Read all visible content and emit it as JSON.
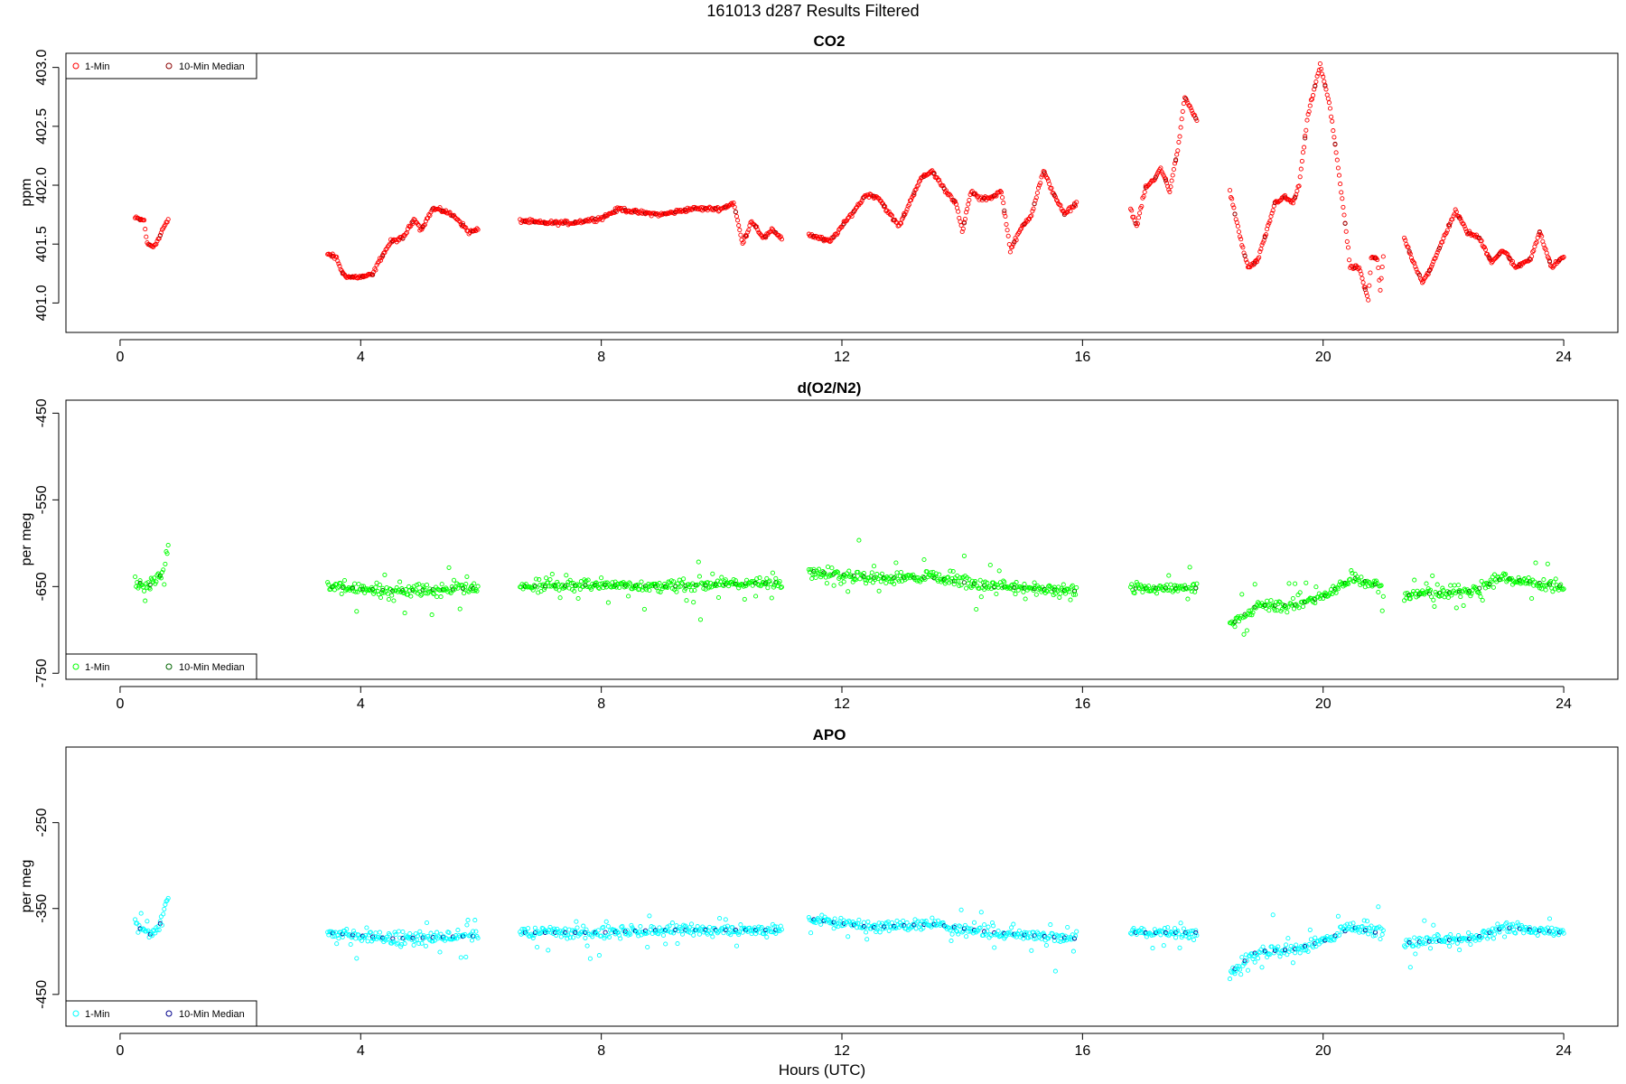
{
  "figure_title": "161013    d287    Results Filtered",
  "xlabel": "Hours (UTC)",
  "chart_data": [
    {
      "type": "scatter",
      "title": "CO2",
      "ylabel": "ppm",
      "xlim": [
        -0.9,
        24.9
      ],
      "ylim": [
        400.75,
        403.12
      ],
      "xticks": [
        0,
        4,
        8,
        12,
        16,
        20,
        24
      ],
      "yticks": [
        401.0,
        401.5,
        402.0,
        402.5,
        403.0
      ],
      "ytick_labels": [
        "401.0",
        "401.5",
        "402.0",
        "402.5",
        "403.0"
      ],
      "legend_position": "top-left",
      "series": [
        {
          "name": "1-Min",
          "color": "#ff0000",
          "segments": [
            {
              "x0": 0.25,
              "x1": 0.8,
              "pts": [
                [
                  0.25,
                  401.72
                ],
                [
                  0.4,
                  401.7
                ],
                [
                  0.45,
                  401.5
                ],
                [
                  0.55,
                  401.48
                ],
                [
                  0.65,
                  401.55
                ],
                [
                  0.7,
                  401.62
                ],
                [
                  0.8,
                  401.7
                ]
              ]
            },
            {
              "x0": 3.45,
              "x1": 5.95,
              "pts": [
                [
                  3.45,
                  401.42
                ],
                [
                  3.6,
                  401.38
                ],
                [
                  3.7,
                  401.25
                ],
                [
                  3.8,
                  401.22
                ],
                [
                  4.0,
                  401.22
                ],
                [
                  4.2,
                  401.24
                ],
                [
                  4.3,
                  401.35
                ],
                [
                  4.5,
                  401.52
                ],
                [
                  4.7,
                  401.55
                ],
                [
                  4.9,
                  401.72
                ],
                [
                  5.0,
                  401.62
                ],
                [
                  5.2,
                  401.8
                ],
                [
                  5.4,
                  401.78
                ],
                [
                  5.6,
                  401.72
                ],
                [
                  5.8,
                  401.6
                ],
                [
                  5.95,
                  401.62
                ]
              ]
            },
            {
              "x0": 6.65,
              "x1": 11.0,
              "pts": [
                [
                  6.65,
                  401.7
                ],
                [
                  7.0,
                  401.68
                ],
                [
                  7.5,
                  401.68
                ],
                [
                  8.0,
                  401.72
                ],
                [
                  8.3,
                  401.8
                ],
                [
                  8.6,
                  401.77
                ],
                [
                  9.0,
                  401.75
                ],
                [
                  9.5,
                  401.8
                ],
                [
                  10.0,
                  401.8
                ],
                [
                  10.2,
                  401.85
                ],
                [
                  10.35,
                  401.5
                ],
                [
                  10.5,
                  401.7
                ],
                [
                  10.7,
                  401.55
                ],
                [
                  10.85,
                  401.62
                ],
                [
                  11.0,
                  401.55
                ]
              ]
            },
            {
              "x0": 11.45,
              "x1": 15.9,
              "pts": [
                [
                  11.45,
                  401.58
                ],
                [
                  11.8,
                  401.52
                ],
                [
                  12.0,
                  401.65
                ],
                [
                  12.2,
                  401.78
                ],
                [
                  12.4,
                  401.92
                ],
                [
                  12.6,
                  401.9
                ],
                [
                  12.8,
                  401.75
                ],
                [
                  12.95,
                  401.65
                ],
                [
                  13.1,
                  401.82
                ],
                [
                  13.3,
                  402.05
                ],
                [
                  13.5,
                  402.12
                ],
                [
                  13.7,
                  401.97
                ],
                [
                  13.9,
                  401.85
                ],
                [
                  14.0,
                  401.6
                ],
                [
                  14.15,
                  401.95
                ],
                [
                  14.3,
                  401.88
                ],
                [
                  14.5,
                  401.9
                ],
                [
                  14.65,
                  401.95
                ],
                [
                  14.8,
                  401.45
                ],
                [
                  15.0,
                  401.65
                ],
                [
                  15.15,
                  401.75
                ],
                [
                  15.35,
                  402.12
                ],
                [
                  15.5,
                  401.95
                ],
                [
                  15.7,
                  401.75
                ],
                [
                  15.9,
                  401.85
                ]
              ]
            },
            {
              "x0": 16.8,
              "x1": 17.9,
              "pts": [
                [
                  16.8,
                  401.8
                ],
                [
                  16.9,
                  401.65
                ],
                [
                  17.05,
                  401.98
                ],
                [
                  17.2,
                  402.05
                ],
                [
                  17.3,
                  402.15
                ],
                [
                  17.45,
                  401.95
                ],
                [
                  17.6,
                  402.35
                ],
                [
                  17.7,
                  402.75
                ],
                [
                  17.85,
                  402.6
                ],
                [
                  17.9,
                  402.55
                ]
              ]
            },
            {
              "x0": 18.45,
              "x1": 21.0,
              "pts": [
                [
                  18.45,
                  401.95
                ],
                [
                  18.6,
                  401.6
                ],
                [
                  18.75,
                  401.3
                ],
                [
                  18.9,
                  401.35
                ],
                [
                  19.0,
                  401.5
                ],
                [
                  19.2,
                  401.85
                ],
                [
                  19.35,
                  401.9
                ],
                [
                  19.5,
                  401.85
                ],
                [
                  19.6,
                  402.0
                ],
                [
                  19.75,
                  402.6
                ],
                [
                  19.95,
                  403.02
                ],
                [
                  20.1,
                  402.7
                ],
                [
                  20.2,
                  402.35
                ],
                [
                  20.35,
                  401.75
                ],
                [
                  20.45,
                  401.3
                ],
                [
                  20.6,
                  401.3
                ],
                [
                  20.8,
                  401.38
                ],
                [
                  20.9,
                  401.38
                ],
                [
                  21.0,
                  401.4
                ],
                [
                  20.95,
                  401.1
                ],
                [
                  20.75,
                  401.02
                ]
              ]
            },
            {
              "x0": 21.35,
              "x1": 24.0,
              "pts": [
                [
                  21.35,
                  401.55
                ],
                [
                  21.5,
                  401.35
                ],
                [
                  21.65,
                  401.18
                ],
                [
                  21.8,
                  401.3
                ],
                [
                  22.0,
                  401.55
                ],
                [
                  22.2,
                  401.78
                ],
                [
                  22.4,
                  401.6
                ],
                [
                  22.6,
                  401.55
                ],
                [
                  22.8,
                  401.35
                ],
                [
                  23.0,
                  401.45
                ],
                [
                  23.2,
                  401.3
                ],
                [
                  23.45,
                  401.38
                ],
                [
                  23.6,
                  401.6
                ],
                [
                  23.8,
                  401.3
                ],
                [
                  24.0,
                  401.4
                ]
              ]
            }
          ]
        },
        {
          "name": "10-Min Median",
          "color": "#8b0000"
        }
      ]
    },
    {
      "type": "scatter",
      "title": "d(O2/N2)",
      "ylabel": "per meg",
      "xlim": [
        -0.9,
        24.9
      ],
      "ylim": [
        -757,
        -435
      ],
      "xticks": [
        0,
        4,
        8,
        12,
        16,
        20,
        24
      ],
      "yticks": [
        -450,
        -550,
        -650,
        -750
      ],
      "ytick_labels": [
        "-450",
        "-550",
        "-650",
        "-750"
      ],
      "legend_position": "bottom-left",
      "series": [
        {
          "name": "1-Min",
          "color": "#00ff00",
          "segments": [
            {
              "x0": 0.25,
              "x1": 0.8,
              "pts": [
                [
                  0.25,
                  -645
                ],
                [
                  0.5,
                  -648
                ],
                [
                  0.7,
                  -635
                ],
                [
                  0.8,
                  -605
                ]
              ]
            },
            {
              "x0": 3.45,
              "x1": 5.95,
              "pts": [
                [
                  3.45,
                  -650
                ],
                [
                  4.5,
                  -655
                ],
                [
                  5.95,
                  -652
                ]
              ]
            },
            {
              "x0": 6.65,
              "x1": 11.0,
              "pts": [
                [
                  6.65,
                  -650
                ],
                [
                  8.0,
                  -648
                ],
                [
                  9.0,
                  -650
                ],
                [
                  11.0,
                  -645
                ]
              ]
            },
            {
              "x0": 11.45,
              "x1": 15.9,
              "pts": [
                [
                  11.45,
                  -632
                ],
                [
                  12.5,
                  -640
                ],
                [
                  13.5,
                  -640
                ],
                [
                  14.5,
                  -650
                ],
                [
                  15.9,
                  -655
                ]
              ]
            },
            {
              "x0": 16.8,
              "x1": 17.9,
              "pts": [
                [
                  16.8,
                  -652
                ],
                [
                  17.9,
                  -652
                ]
              ]
            },
            {
              "x0": 18.45,
              "x1": 21.0,
              "pts": [
                [
                  18.45,
                  -695
                ],
                [
                  18.9,
                  -672
                ],
                [
                  19.5,
                  -672
                ],
                [
                  20.0,
                  -662
                ],
                [
                  20.5,
                  -640
                ],
                [
                  21.0,
                  -650
                ]
              ]
            },
            {
              "x0": 21.35,
              "x1": 24.0,
              "pts": [
                [
                  21.35,
                  -660
                ],
                [
                  22.5,
                  -655
                ],
                [
                  23.0,
                  -640
                ],
                [
                  24.0,
                  -650
                ]
              ]
            }
          ]
        },
        {
          "name": "10-Min Median",
          "color": "#006400"
        }
      ]
    },
    {
      "type": "scatter",
      "title": "APO",
      "ylabel": "per meg",
      "xlim": [
        -0.9,
        24.9
      ],
      "ylim": [
        -487,
        -162
      ],
      "xticks": [
        0,
        4,
        8,
        12,
        16,
        20,
        24
      ],
      "yticks": [
        -250,
        -350,
        -450
      ],
      "ytick_labels": [
        "-250",
        "-350",
        "-450"
      ],
      "legend_position": "bottom-left",
      "series": [
        {
          "name": "1-Min",
          "color": "#00ffff",
          "segments": [
            {
              "x0": 0.25,
              "x1": 0.8,
              "pts": [
                [
                  0.25,
                  -370
                ],
                [
                  0.5,
                  -380
                ],
                [
                  0.7,
                  -365
                ],
                [
                  0.8,
                  -335
                ]
              ]
            },
            {
              "x0": 3.45,
              "x1": 5.95,
              "pts": [
                [
                  3.45,
                  -378
                ],
                [
                  4.5,
                  -385
                ],
                [
                  5.95,
                  -382
                ]
              ]
            },
            {
              "x0": 6.65,
              "x1": 11.0,
              "pts": [
                [
                  6.65,
                  -378
                ],
                [
                  8.0,
                  -378
                ],
                [
                  9.0,
                  -375
                ],
                [
                  11.0,
                  -375
                ]
              ]
            },
            {
              "x0": 11.45,
              "x1": 15.9,
              "pts": [
                [
                  11.45,
                  -362
                ],
                [
                  12.5,
                  -372
                ],
                [
                  13.5,
                  -368
                ],
                [
                  14.5,
                  -378
                ],
                [
                  15.9,
                  -385
                ]
              ]
            },
            {
              "x0": 16.8,
              "x1": 17.9,
              "pts": [
                [
                  16.8,
                  -378
                ],
                [
                  17.9,
                  -378
                ]
              ]
            },
            {
              "x0": 18.45,
              "x1": 21.0,
              "pts": [
                [
                  18.45,
                  -425
                ],
                [
                  18.9,
                  -400
                ],
                [
                  19.5,
                  -398
                ],
                [
                  20.0,
                  -388
                ],
                [
                  20.5,
                  -372
                ],
                [
                  21.0,
                  -380
                ]
              ]
            },
            {
              "x0": 21.35,
              "x1": 24.0,
              "pts": [
                [
                  21.35,
                  -390
                ],
                [
                  22.5,
                  -385
                ],
                [
                  23.0,
                  -372
                ],
                [
                  24.0,
                  -378
                ]
              ]
            }
          ]
        },
        {
          "name": "10-Min Median",
          "color": "#00008b"
        }
      ]
    }
  ]
}
